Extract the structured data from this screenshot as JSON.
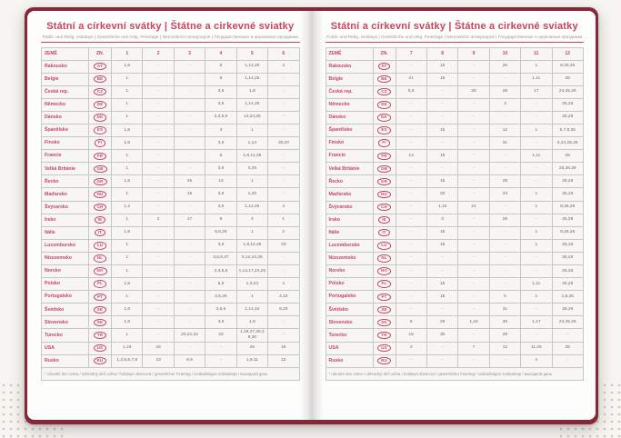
{
  "page_title": "Státní a církevní svátky | Štátne a cirkevné sviatky",
  "page_subtitle": "Public and Relig. Holidays | Gesetzliche und relig. Feiertage | Nemzetközi ünnepnapok | Государственные и церковные праздники",
  "footnote": "* národní den volna / náhradný deň voľna / holidays observed / gesetzlicher Feiertag / szabadságos szabadnap / выходной день",
  "table": {
    "col_country": "ZEMĚ",
    "col_code": "ZN.",
    "months_left": [
      "1",
      "2",
      "3",
      "4",
      "5",
      "6"
    ],
    "months_right": [
      "7",
      "8",
      "9",
      "10",
      "11",
      "12"
    ],
    "rows": [
      {
        "country": "Rakousko",
        "code": "AT",
        "m": [
          "1,6",
          "–",
          "–",
          "6",
          "1,14,25",
          "4",
          "–",
          "15",
          "–",
          "26",
          "1",
          "8,25,26"
        ]
      },
      {
        "country": "Belgie",
        "code": "BE",
        "m": [
          "1",
          "–",
          "–",
          "6",
          "1,14,25",
          "–",
          "21",
          "15",
          "–",
          "–",
          "1,11",
          "25"
        ]
      },
      {
        "country": "Česká rep.",
        "code": "CZ",
        "m": [
          "1",
          "–",
          "–",
          "3,6",
          "1,8",
          "–",
          "5,6",
          "–",
          "28",
          "28",
          "17",
          "24,25,26"
        ]
      },
      {
        "country": "Německo",
        "code": "DE",
        "m": [
          "1",
          "–",
          "–",
          "3,6",
          "1,14,25",
          "–",
          "–",
          "–",
          "–",
          "3",
          "–",
          "25,26"
        ]
      },
      {
        "country": "Dánsko",
        "code": "DK",
        "m": [
          "1",
          "–",
          "–",
          "2,3,5,6",
          "14,24,25",
          "–",
          "–",
          "–",
          "–",
          "–",
          "–",
          "25,26"
        ]
      },
      {
        "country": "Španělsko",
        "code": "ES",
        "m": [
          "1,6",
          "–",
          "–",
          "3",
          "1",
          "–",
          "–",
          "15",
          "–",
          "12",
          "1",
          "6,7,8,25"
        ]
      },
      {
        "country": "Finsko",
        "code": "FI",
        "m": [
          "1,6",
          "–",
          "–",
          "3,6",
          "1,14",
          "19,20",
          "–",
          "–",
          "–",
          "31",
          "–",
          "6,24,25,26"
        ]
      },
      {
        "country": "Francie",
        "code": "FR",
        "m": [
          "1",
          "–",
          "–",
          "6",
          "1,8,14,25",
          "–",
          "14",
          "15",
          "–",
          "–",
          "1,11",
          "25"
        ]
      },
      {
        "country": "Velká Británie",
        "code": "GB",
        "m": [
          "1",
          "–",
          "–",
          "3,6",
          "4,25",
          "–",
          "–",
          "–",
          "–",
          "–",
          "–",
          "25,26,28"
        ]
      },
      {
        "country": "Řecko",
        "code": "GR",
        "m": [
          "1,6",
          "–",
          "25",
          "13",
          "1",
          "–",
          "–",
          "15",
          "–",
          "28",
          "–",
          "25,26"
        ]
      },
      {
        "country": "Maďarsko",
        "code": "HU",
        "m": [
          "1",
          "–",
          "15",
          "3,6",
          "1,25",
          "–",
          "–",
          "20",
          "–",
          "23",
          "1",
          "25,26"
        ]
      },
      {
        "country": "Švýcarsko",
        "code": "CH",
        "m": [
          "1,2",
          "–",
          "–",
          "3,6",
          "1,14,25",
          "4",
          "–",
          "1,15",
          "21",
          "–",
          "1",
          "8,25,26"
        ]
      },
      {
        "country": "Irsko",
        "code": "IE",
        "m": [
          "1",
          "2",
          "17",
          "6",
          "4",
          "1",
          "–",
          "3",
          "–",
          "26",
          "–",
          "25,28"
        ]
      },
      {
        "country": "Itálie",
        "code": "IT",
        "m": [
          "1,6",
          "–",
          "–",
          "5,6,25",
          "1",
          "2",
          "–",
          "15",
          "–",
          "–",
          "1",
          "8,25,26"
        ]
      },
      {
        "country": "Lucembursko",
        "code": "LU",
        "m": [
          "1",
          "–",
          "–",
          "3,6",
          "1,9,14,25",
          "23",
          "–",
          "15",
          "–",
          "–",
          "1",
          "25,26"
        ]
      },
      {
        "country": "Nizozemsko",
        "code": "NL",
        "m": [
          "1",
          "–",
          "–",
          "3,5,6,27",
          "5,14,24,25",
          "–",
          "–",
          "–",
          "–",
          "–",
          "–",
          "25,26"
        ]
      },
      {
        "country": "Norsko",
        "code": "NO",
        "m": [
          "1",
          "–",
          "–",
          "2,3,5,6",
          "1,14,17,24,25",
          "–",
          "–",
          "–",
          "–",
          "–",
          "–",
          "25,26"
        ]
      },
      {
        "country": "Polsko",
        "code": "PL",
        "m": [
          "1,6",
          "–",
          "–",
          "5,6",
          "1,3,24",
          "4",
          "–",
          "15",
          "–",
          "–",
          "1,11",
          "25,26"
        ]
      },
      {
        "country": "Portugalsko",
        "code": "PT",
        "m": [
          "1",
          "–",
          "–",
          "3,5,25",
          "1",
          "4,10",
          "–",
          "15",
          "–",
          "5",
          "1",
          "1,8,25"
        ]
      },
      {
        "country": "Švédsko",
        "code": "SE",
        "m": [
          "1,6",
          "–",
          "–",
          "3,5,6",
          "1,14,24",
          "6,20",
          "–",
          "–",
          "–",
          "31",
          "–",
          "25,26"
        ]
      },
      {
        "country": "Slovensko",
        "code": "SK",
        "m": [
          "1,6",
          "–",
          "–",
          "3,6",
          "1,8",
          "–",
          "5",
          "29",
          "1,15",
          "30",
          "1,17",
          "24,25,26"
        ]
      },
      {
        "country": "Turecko",
        "code": "TR",
        "m": [
          "1",
          "–",
          "20,21,22",
          "23",
          "1,19,27,28,29,30",
          "–",
          "15",
          "30",
          "–",
          "29",
          "–",
          "–"
        ]
      },
      {
        "country": "USA",
        "code": "US",
        "m": [
          "1,19",
          "16",
          "–",
          "–",
          "25",
          "19",
          "3",
          "–",
          "7",
          "12",
          "11,26",
          "25"
        ]
      },
      {
        "country": "Rusko",
        "code": "RU",
        "m": [
          "1,2,5,6,7,8",
          "23",
          "8,9",
          "–",
          "1,9,11",
          "12",
          "–",
          "–",
          "–",
          "–",
          "4",
          "–"
        ]
      }
    ]
  }
}
